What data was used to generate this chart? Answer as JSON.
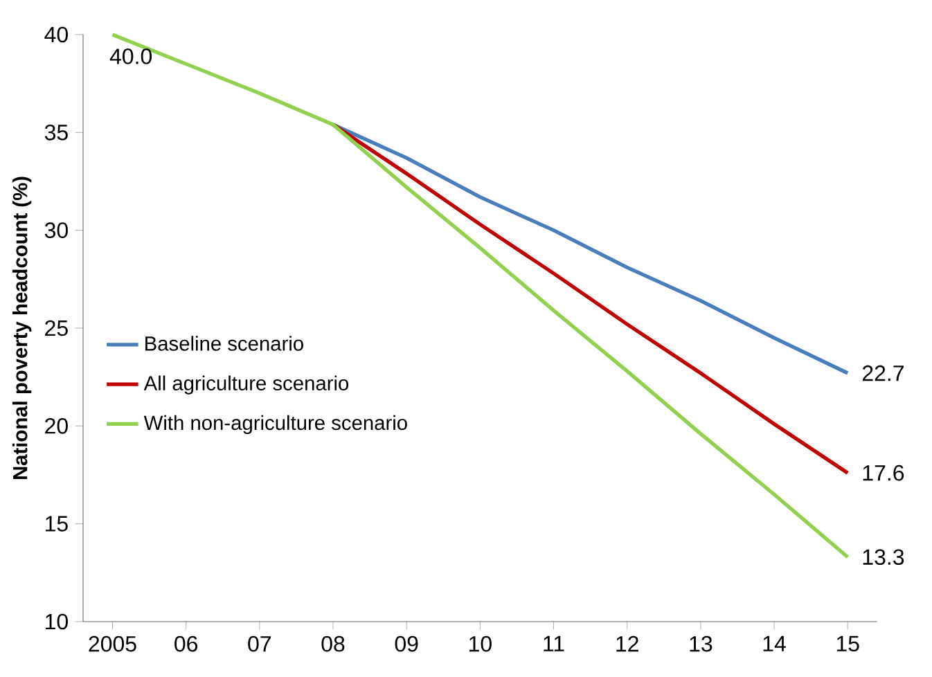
{
  "chart_data": {
    "type": "line",
    "ylabel": "National poverty headcount (%)",
    "categories": [
      "2005",
      "06",
      "07",
      "08",
      "09",
      "10",
      "11",
      "12",
      "13",
      "14",
      "15"
    ],
    "ylim": [
      10,
      40
    ],
    "yticks": [
      10,
      15,
      20,
      25,
      30,
      35,
      40
    ],
    "grid": false,
    "legend": "left",
    "marker": "none",
    "line_style": "solid",
    "series": [
      {
        "name": "Baseline scenario",
        "color": "#4a7ebb",
        "values": [
          null,
          null,
          null,
          35.4,
          33.7,
          31.7,
          30.0,
          28.1,
          26.4,
          24.5,
          22.7
        ],
        "value_labels": [
          null,
          null,
          null,
          null,
          null,
          null,
          null,
          null,
          null,
          null,
          "22.7"
        ]
      },
      {
        "name": "All agriculture scenario",
        "color": "#c00000",
        "values": [
          null,
          null,
          null,
          35.4,
          32.9,
          30.3,
          27.8,
          25.2,
          22.7,
          20.1,
          17.6
        ],
        "value_labels": [
          null,
          null,
          null,
          null,
          null,
          null,
          null,
          null,
          null,
          null,
          "17.6"
        ]
      },
      {
        "name": "With non-agriculture scenario",
        "color": "#92d050",
        "values": [
          40.0,
          38.5,
          37.0,
          35.4,
          32.2,
          29.1,
          25.9,
          22.8,
          19.6,
          16.5,
          13.3
        ],
        "value_labels": [
          "40.0",
          null,
          null,
          null,
          null,
          null,
          null,
          null,
          null,
          null,
          "13.3"
        ]
      }
    ]
  }
}
